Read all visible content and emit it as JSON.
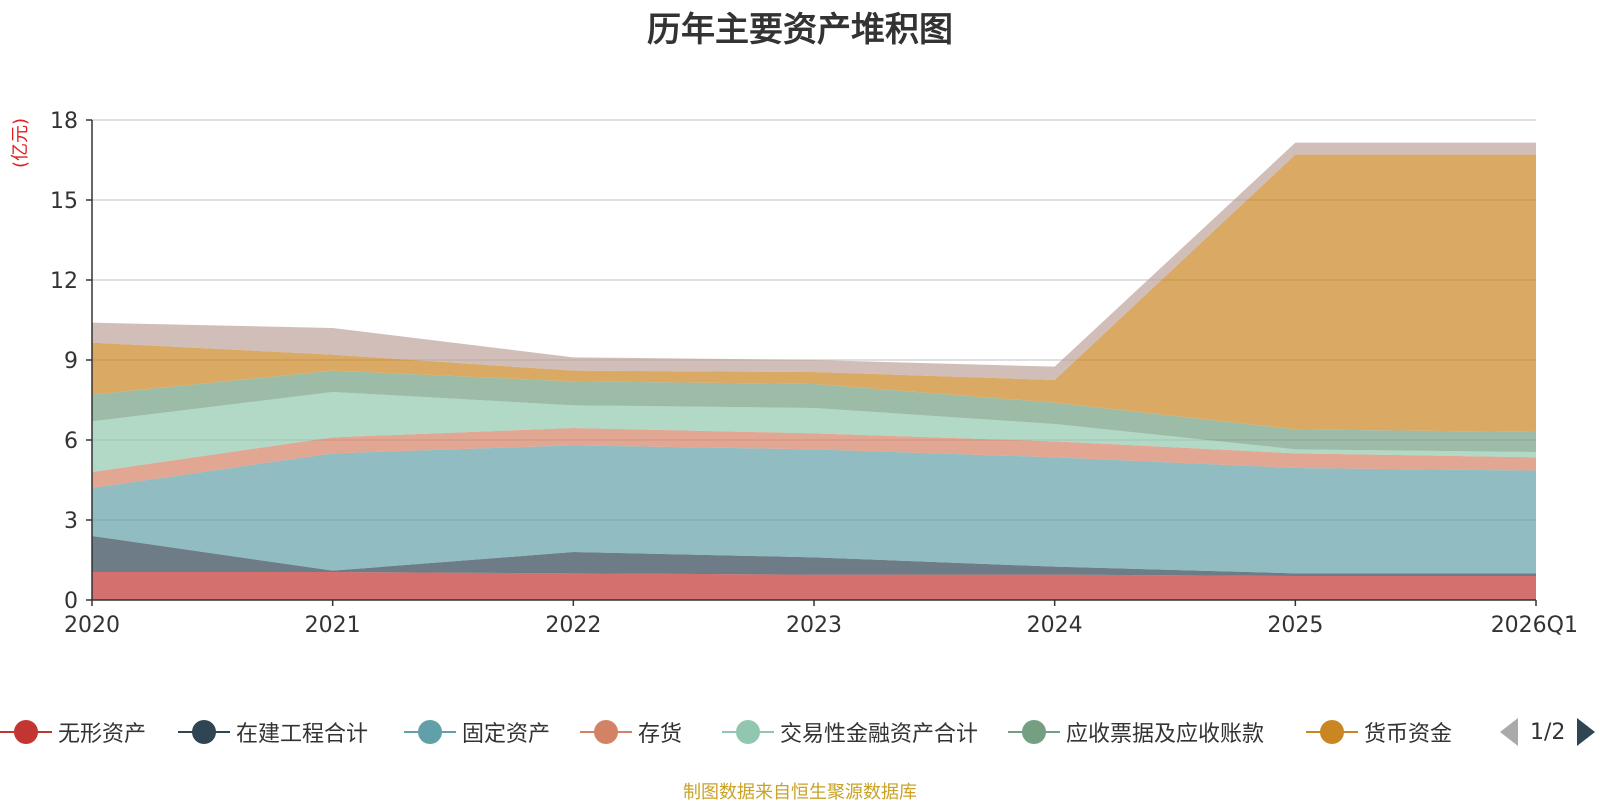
{
  "chart_data": {
    "type": "area",
    "title": "历年主要资产堆积图",
    "ylabel": "(亿元)",
    "xlabel": "",
    "categories": [
      "2020",
      "2021",
      "2022",
      "2023",
      "2024",
      "2025",
      "2026Q1"
    ],
    "ylim": [
      0,
      18
    ],
    "yticks": [
      0,
      3,
      6,
      9,
      12,
      15,
      18
    ],
    "stacked": true,
    "grid": true,
    "series": [
      {
        "name": "无形资产",
        "color": "#c23531",
        "values": [
          1.05,
          1.05,
          1.0,
          0.95,
          0.95,
          0.9,
          0.9
        ]
      },
      {
        "name": "在建工程合计",
        "color": "#2f4554",
        "values": [
          1.35,
          0.05,
          0.8,
          0.65,
          0.3,
          0.1,
          0.1
        ]
      },
      {
        "name": "固定资产",
        "color": "#61a0a8",
        "values": [
          1.8,
          4.4,
          4.0,
          4.05,
          4.1,
          3.95,
          3.85
        ]
      },
      {
        "name": "存货",
        "color": "#d48265",
        "values": [
          0.6,
          0.6,
          0.65,
          0.6,
          0.6,
          0.55,
          0.5
        ]
      },
      {
        "name": "交易性金融资产合计",
        "color": "#91c7ae",
        "values": [
          1.9,
          1.7,
          0.85,
          0.95,
          0.65,
          0.15,
          0.2
        ]
      },
      {
        "name": "应收票据及应收账款",
        "color": "#749f83",
        "values": [
          1.0,
          0.8,
          0.9,
          0.9,
          0.8,
          0.75,
          0.75
        ]
      },
      {
        "name": "货币资金",
        "color": "#ca8622",
        "values": [
          1.95,
          0.6,
          0.4,
          0.45,
          0.85,
          10.3,
          10.4
        ]
      },
      {
        "name": "",
        "color": "#bda29a",
        "values": [
          0.75,
          1.0,
          0.5,
          0.45,
          0.5,
          0.45,
          0.45
        ]
      }
    ],
    "legend": {
      "position": "bottom",
      "page": "1/2"
    }
  },
  "footer": {
    "source": "制图数据来自恒生聚源数据库"
  }
}
